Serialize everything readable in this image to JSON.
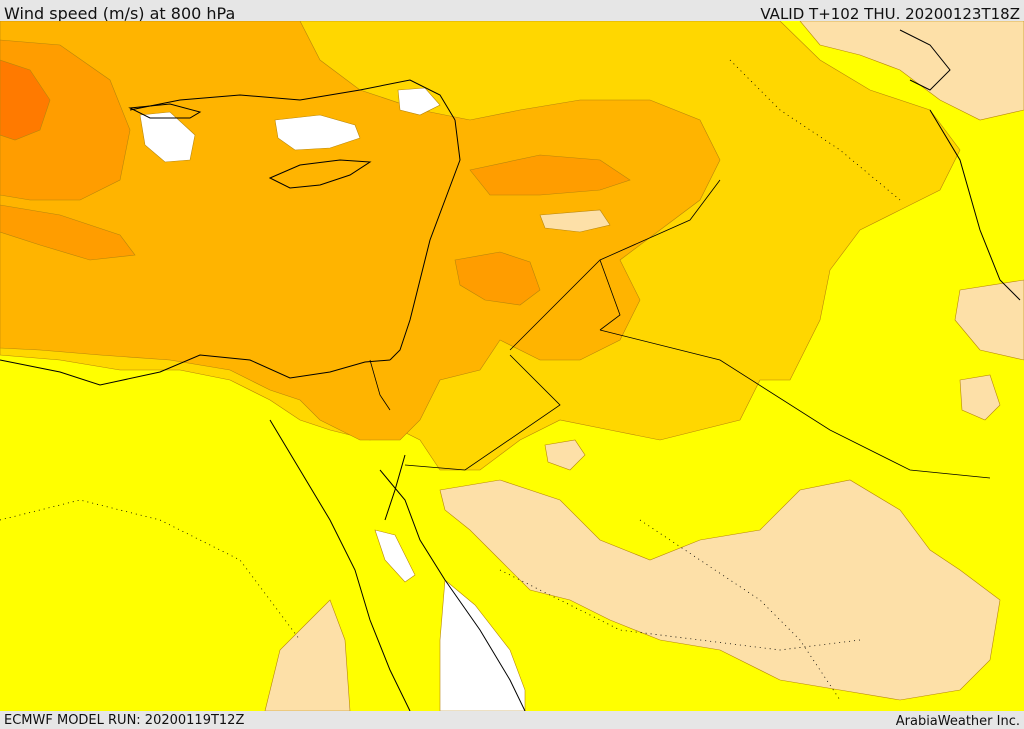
{
  "header": {
    "title": "Wind speed (m/s) at 800 hPa",
    "valid": "VALID T+102 THU. 20200123T18Z"
  },
  "footer": {
    "model_run": "ECMWF MODEL RUN: 20200119T12Z",
    "credit": "ArabiaWeather Inc."
  },
  "map": {
    "field": "wind speed",
    "level": "800 hPa",
    "colors": {
      "lightest": "#ffffff",
      "light": "#fde0a8",
      "base": "#ffff00",
      "mid": "#ffd700",
      "high": "#ffb400",
      "higher": "#ff9d00",
      "highest": "#ff7a00",
      "coast": "#000000"
    }
  }
}
